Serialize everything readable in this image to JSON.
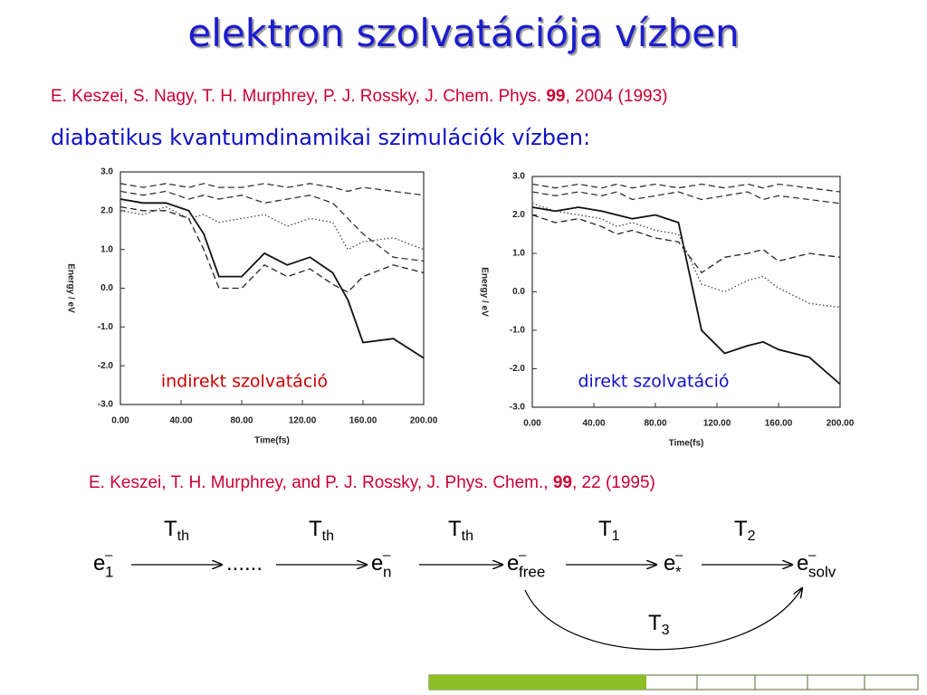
{
  "slide": {
    "title": "elektron szolvatációja vízben",
    "reference1": {
      "authors": "E. Keszei, S. Nagy, T. H. Murphrey, P. J. Rossky, J. Chem. Phys. ",
      "volume": "99",
      "rest": ", 2004 (1993)"
    },
    "subtitle": "diabatikus kvantumdinamikai szimulációk vízben:",
    "reference2": {
      "authors": "E. Keszei, T. H. Murphrey, and P. J. Rossky, J. Phys. Chem., ",
      "volume": "99",
      "rest": ", 22 (1995)"
    },
    "scheme": {
      "nodes": [
        {
          "base": "e",
          "sup": "–",
          "sub": "1"
        },
        {
          "base": "......"
        },
        {
          "base": "e",
          "sup": "–",
          "sub": "n"
        },
        {
          "base": "e",
          "sup": "–",
          "sub": "free"
        },
        {
          "base": "e",
          "sup": "–",
          "sub": "*"
        },
        {
          "base": "e",
          "sup": "–",
          "sub": "solv"
        }
      ],
      "arrows": [
        {
          "base": "T",
          "sub": "th"
        },
        {
          "base": "T",
          "sub": "th"
        },
        {
          "base": "T",
          "sub": "th"
        },
        {
          "base": "T",
          "sub": "1"
        },
        {
          "base": "T",
          "sub": "2"
        }
      ],
      "bypass": {
        "base": "T",
        "sub": "3"
      }
    }
  },
  "chart_data": [
    {
      "type": "line",
      "x_label": "Time(fs)",
      "y_label": "Energy / eV",
      "annotation": "indirekt szolvatáció",
      "annotation_color": "#cc0000",
      "x": [
        0,
        15,
        30,
        45,
        55,
        65,
        80,
        95,
        110,
        125,
        140,
        150,
        160,
        180,
        200
      ],
      "xlim": [
        0,
        200
      ],
      "ylim": [
        -3,
        3
      ],
      "xticks": [
        {
          "value": 0,
          "label": "0.00"
        },
        {
          "value": 40,
          "label": "40.00"
        },
        {
          "value": 80,
          "label": "80.00"
        },
        {
          "value": 120,
          "label": "120.00"
        },
        {
          "value": 160,
          "label": "160.00"
        },
        {
          "value": 200,
          "label": "200.00"
        }
      ],
      "yticks": [
        {
          "value": 3,
          "label": "3.0"
        },
        {
          "value": 2,
          "label": "2.0"
        },
        {
          "value": 1,
          "label": "1.0"
        },
        {
          "value": 0,
          "label": "0.0"
        },
        {
          "value": -1,
          "label": "-1.0"
        },
        {
          "value": -2,
          "label": "-2.0"
        },
        {
          "value": -3,
          "label": "-3.0"
        }
      ],
      "series": [
        {
          "color": "#111111",
          "dash": "solid",
          "values": [
            2.3,
            2.2,
            2.2,
            2.0,
            1.4,
            0.3,
            0.3,
            0.9,
            0.6,
            0.8,
            0.4,
            -0.3,
            -1.4,
            -1.3,
            -1.8
          ]
        },
        {
          "color": "#222222",
          "dash": "dashed",
          "values": [
            2.1,
            2.0,
            2.0,
            1.8,
            1.0,
            0.0,
            0.0,
            0.6,
            0.3,
            0.5,
            0.1,
            -0.1,
            0.3,
            0.6,
            0.4
          ]
        },
        {
          "color": "#333333",
          "dash": "dashed",
          "values": [
            2.5,
            2.4,
            2.5,
            2.3,
            2.4,
            2.3,
            2.4,
            2.2,
            2.3,
            2.4,
            2.2,
            1.8,
            1.4,
            0.8,
            0.7
          ]
        },
        {
          "color": "#333333",
          "dash": "dashed",
          "values": [
            2.7,
            2.6,
            2.7,
            2.6,
            2.7,
            2.6,
            2.6,
            2.7,
            2.6,
            2.7,
            2.6,
            2.5,
            2.6,
            2.5,
            2.4
          ]
        },
        {
          "color": "#444444",
          "dash": "dotted",
          "values": [
            2.0,
            1.9,
            2.1,
            1.8,
            1.9,
            1.7,
            1.8,
            1.9,
            1.6,
            1.8,
            1.7,
            1.0,
            1.2,
            1.3,
            1.0
          ]
        }
      ]
    },
    {
      "type": "line",
      "x_label": "Time(fs)",
      "y_label": "Energy / eV",
      "annotation": "direkt szolvatáció",
      "annotation_color": "#1010c8",
      "x": [
        0,
        15,
        30,
        45,
        55,
        65,
        80,
        95,
        110,
        125,
        140,
        150,
        160,
        180,
        200
      ],
      "xlim": [
        0,
        200
      ],
      "ylim": [
        -3,
        3
      ],
      "xticks": [
        {
          "value": 0,
          "label": "0.00"
        },
        {
          "value": 40,
          "label": "40.00"
        },
        {
          "value": 80,
          "label": "80.00"
        },
        {
          "value": 120,
          "label": "120.00"
        },
        {
          "value": 160,
          "label": "160.00"
        },
        {
          "value": 200,
          "label": "200.00"
        }
      ],
      "yticks": [
        {
          "value": 3,
          "label": "3.0"
        },
        {
          "value": 2,
          "label": "2.0"
        },
        {
          "value": 1,
          "label": "1.0"
        },
        {
          "value": 0,
          "label": "0.0"
        },
        {
          "value": -1,
          "label": "-1.0"
        },
        {
          "value": -2,
          "label": "-2.0"
        },
        {
          "value": -3,
          "label": "-3.0"
        }
      ],
      "series": [
        {
          "color": "#111111",
          "dash": "solid",
          "values": [
            2.2,
            2.1,
            2.2,
            2.1,
            2.0,
            1.9,
            2.0,
            1.8,
            -1.0,
            -1.6,
            -1.4,
            -1.3,
            -1.5,
            -1.7,
            -2.4
          ]
        },
        {
          "color": "#222222",
          "dash": "dashed",
          "values": [
            2.0,
            1.8,
            1.9,
            1.7,
            1.5,
            1.6,
            1.4,
            1.3,
            0.5,
            0.9,
            1.0,
            1.1,
            0.8,
            1.0,
            0.9
          ]
        },
        {
          "color": "#444444",
          "dash": "dotted",
          "values": [
            2.3,
            2.1,
            2.0,
            1.9,
            1.7,
            1.8,
            1.6,
            1.5,
            0.2,
            0.0,
            0.3,
            0.4,
            0.1,
            -0.3,
            -0.4
          ]
        },
        {
          "color": "#333333",
          "dash": "dashed",
          "values": [
            2.6,
            2.5,
            2.6,
            2.5,
            2.6,
            2.4,
            2.5,
            2.6,
            2.4,
            2.5,
            2.6,
            2.4,
            2.5,
            2.4,
            2.3
          ]
        },
        {
          "color": "#333333",
          "dash": "dashed",
          "values": [
            2.8,
            2.7,
            2.8,
            2.7,
            2.8,
            2.7,
            2.8,
            2.7,
            2.8,
            2.7,
            2.8,
            2.7,
            2.8,
            2.7,
            2.6
          ]
        }
      ]
    }
  ]
}
